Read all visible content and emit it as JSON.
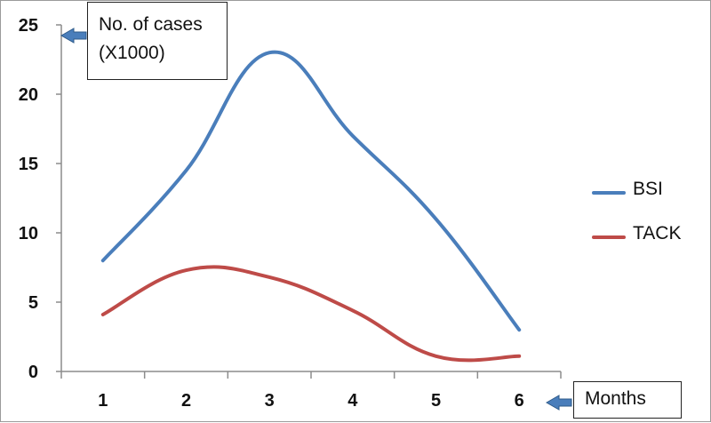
{
  "chart_data": {
    "type": "line",
    "categories": [
      "1",
      "2",
      "3",
      "4",
      "5",
      "6"
    ],
    "xlabel": "Months",
    "ylabel": "No. of cases (X1000)",
    "ylabel_lines": [
      "No. of cases",
      "(X1000)"
    ],
    "yticks": [
      "0",
      "5",
      "10",
      "15",
      "20",
      "25"
    ],
    "ylim": [
      0,
      25
    ],
    "grid": false,
    "legend_position": "right",
    "series": [
      {
        "name": "BSI",
        "color": "#4a7ebb",
        "values": [
          8,
          14.5,
          23,
          17,
          11,
          3
        ]
      },
      {
        "name": "TACK",
        "color": "#be4b48",
        "values": [
          4.1,
          7.3,
          6.8,
          4.4,
          1.1,
          1.1
        ]
      }
    ]
  }
}
